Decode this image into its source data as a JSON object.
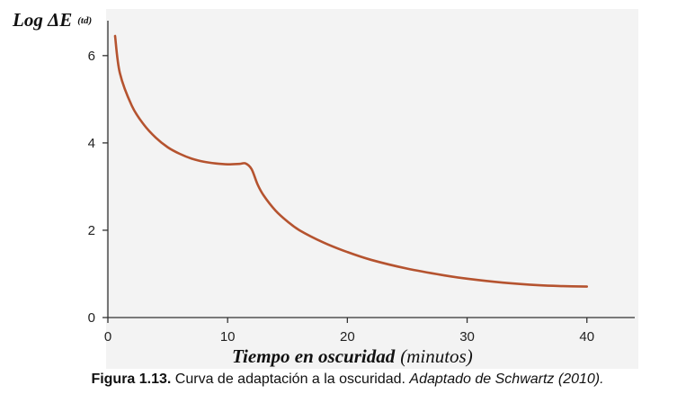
{
  "chart_data": {
    "type": "line",
    "ylabel": "Log ΔE",
    "ylabel_unit": "(td)",
    "xlabel": "Tiempo en oscuridad",
    "xlabel_unit": "(minutos)",
    "xlim": [
      0,
      44
    ],
    "ylim": [
      0,
      6.8
    ],
    "xticks": [
      0,
      10,
      20,
      30,
      40
    ],
    "yticks": [
      0,
      2,
      4,
      6
    ],
    "grid": false,
    "series": [
      {
        "color": "#b5532f",
        "x": [
          0.6,
          1,
          2,
          3,
          4,
          5,
          6,
          7,
          8,
          9,
          10,
          11,
          11.5,
          12,
          12.5,
          13,
          14,
          15,
          16,
          18,
          20,
          22,
          25,
          28,
          30,
          33,
          36,
          38,
          40
        ],
        "y": [
          6.45,
          5.6,
          4.85,
          4.42,
          4.12,
          3.9,
          3.75,
          3.64,
          3.57,
          3.53,
          3.51,
          3.52,
          3.53,
          3.4,
          3.05,
          2.8,
          2.45,
          2.2,
          2.0,
          1.72,
          1.5,
          1.32,
          1.12,
          0.97,
          0.89,
          0.8,
          0.74,
          0.72,
          0.71
        ]
      }
    ]
  },
  "caption": {
    "label": "Figura 1.13.",
    "text": " Curva de adaptación a la oscuridad. ",
    "source": "Adaptado de Schwartz (2010)."
  }
}
